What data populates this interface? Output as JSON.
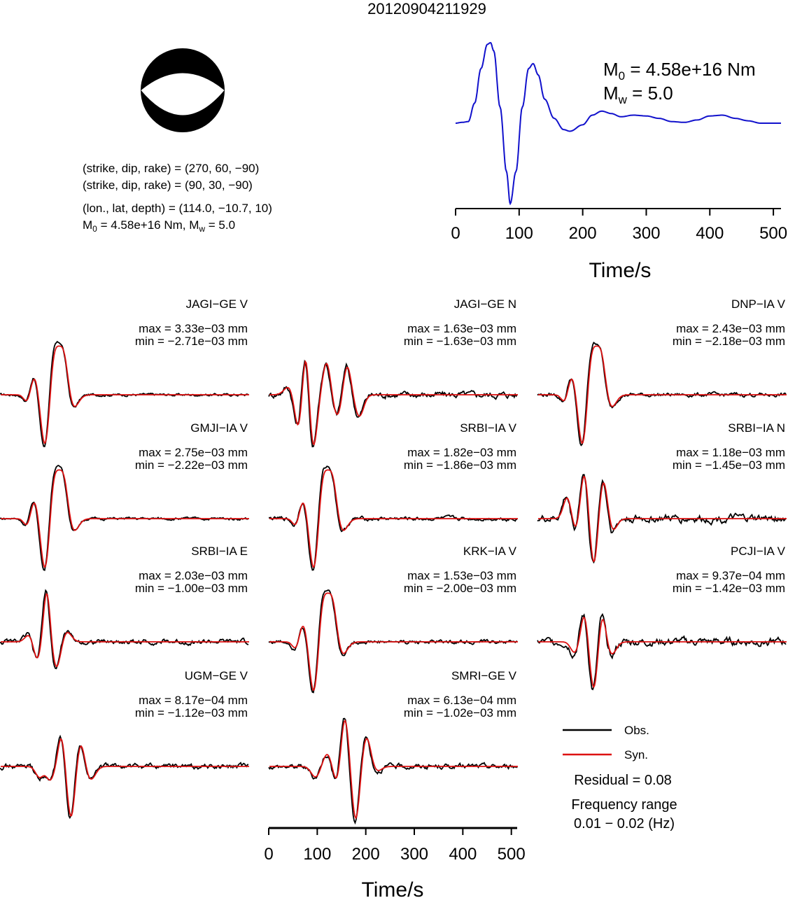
{
  "title": "20120904211929",
  "colors": {
    "obs": "#000000",
    "syn": "#dd1111",
    "stf": "#1111cc",
    "text": "#000000"
  },
  "mechanism": {
    "lines": [
      "(strike, dip, rake) = (270, 60, −90)",
      "(strike, dip, rake) = (90, 30, −90)",
      "(lon., lat, depth) = (114.0, −10.7, 10)"
    ],
    "m0_line": {
      "pre": "M",
      "sub": "0",
      "mid": " = 4.58e+16 Nm, M",
      "sub2": "w",
      "post": " = 5.0"
    }
  },
  "stf_labels": {
    "m0": {
      "pre": "M",
      "sub": "0",
      "post": " = 4.58e+16 Nm"
    },
    "mw": {
      "pre": "M",
      "sub": "w",
      "post": " = 5.0"
    }
  },
  "legend": {
    "obs": "Obs.",
    "syn": "Syn.",
    "residual": "Residual = 0.08",
    "freq_title": "Frequency range",
    "freq_value": "0.01 − 0.02 (Hz)"
  },
  "chart_data": [
    {
      "type": "line",
      "name_role": "source time function",
      "xlabel": "Time/s",
      "xlim": [
        0,
        512
      ],
      "xticks": [
        0,
        100,
        200,
        300,
        400,
        500
      ],
      "x": [
        0,
        10,
        20,
        30,
        40,
        50,
        55,
        60,
        70,
        80,
        86,
        95,
        105,
        115,
        122,
        130,
        140,
        155,
        170,
        180,
        200,
        215,
        230,
        245,
        260,
        280,
        300,
        320,
        340,
        360,
        380,
        400,
        420,
        440,
        460,
        480,
        500,
        512
      ],
      "values": [
        0.0,
        0.01,
        0.02,
        0.25,
        0.68,
        0.98,
        1.0,
        0.9,
        0.2,
        -0.6,
        -1.0,
        -0.6,
        0.2,
        0.68,
        0.74,
        0.6,
        0.3,
        0.06,
        -0.08,
        -0.1,
        -0.02,
        0.1,
        0.15,
        0.12,
        0.08,
        0.1,
        0.09,
        0.06,
        0.02,
        0.01,
        0.04,
        0.09,
        0.1,
        0.06,
        0.03,
        0.0,
        0.0,
        0.0
      ]
    },
    {
      "type": "line",
      "name_role": "waveform fits",
      "xlabel": "Time/s",
      "xlim": [
        0,
        512
      ],
      "xticks": [
        0,
        100,
        200,
        300,
        400,
        500
      ],
      "traces": [
        {
          "station": "JAGI−GE V",
          "max": "max = 3.33e−03 mm",
          "min": "min = −2.71e−03 mm",
          "col": 0,
          "row": 0,
          "kind": "A",
          "scale": 1.0,
          "noise": 0.02
        },
        {
          "station": "JAGI−GE N",
          "max": "max = 1.63e−03 mm",
          "min": "min = −1.63e−03 mm",
          "col": 1,
          "row": 0,
          "kind": "B",
          "scale": 0.95,
          "noise": 0.05
        },
        {
          "station": "DNP−IA V",
          "max": "max = 2.43e−03 mm",
          "min": "min = −2.18e−03 mm",
          "col": 2,
          "row": 0,
          "kind": "A",
          "scale": 1.0,
          "noise": 0.03
        },
        {
          "station": "GMJI−IA V",
          "max": "max = 2.75e−03 mm",
          "min": "min = −2.22e−03 mm",
          "col": 0,
          "row": 1,
          "kind": "A",
          "scale": 1.0,
          "noise": 0.02
        },
        {
          "station": "SRBI−IA V",
          "max": "max = 1.82e−03 mm",
          "min": "min = −1.86e−03 mm",
          "col": 1,
          "row": 1,
          "kind": "A",
          "scale": 1.0,
          "noise": 0.03
        },
        {
          "station": "SRBI−IA N",
          "max": "max = 1.18e−03 mm",
          "min": "min = −1.45e−03 mm",
          "col": 2,
          "row": 1,
          "kind": "C",
          "scale": 1.0,
          "noise": 0.06
        },
        {
          "station": "SRBI−IA E",
          "max": "max = 2.03e−03 mm",
          "min": "min = −1.00e−03 mm",
          "col": 0,
          "row": 2,
          "kind": "D",
          "scale": 1.0,
          "noise": 0.04
        },
        {
          "station": "KRK−IA V",
          "max": "max = 1.53e−03 mm",
          "min": "min = −2.00e−03 mm",
          "col": 1,
          "row": 2,
          "kind": "A",
          "scale": 1.0,
          "noise": 0.03
        },
        {
          "station": "PCJI−IA V",
          "max": "max = 9.37e−04 mm",
          "min": "min = −1.42e−03 mm",
          "col": 2,
          "row": 2,
          "kind": "E",
          "scale": 1.0,
          "noise": 0.06
        },
        {
          "station": "UGM−GE V",
          "max": "max = 8.17e−04 mm",
          "min": "min = −1.12e−03 mm",
          "col": 0,
          "row": 3,
          "kind": "F",
          "scale": 1.0,
          "noise": 0.04
        },
        {
          "station": "SMRI−GE V",
          "max": "max = 6.13e−04 mm",
          "min": "min = −1.02e−03 mm",
          "col": 1,
          "row": 3,
          "kind": "G",
          "scale": 1.0,
          "noise": 0.04
        }
      ]
    }
  ]
}
